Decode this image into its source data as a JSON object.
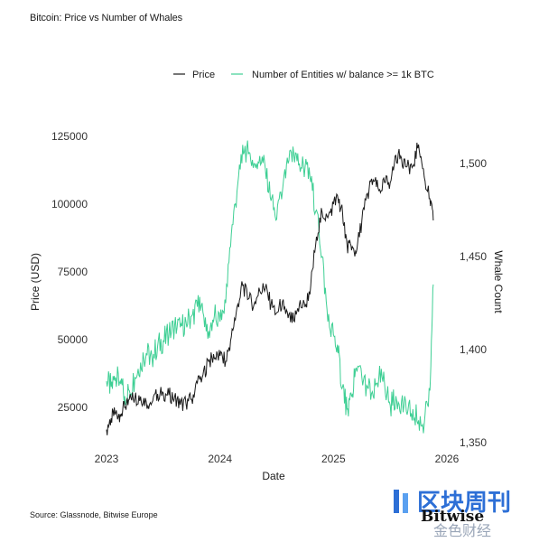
{
  "page": {
    "title": "Bitcoin: Price vs Number of Whales",
    "source": "Source: Glassnode, Bitwise Europe"
  },
  "watermark": {
    "brand_cn": "区块周刊",
    "brand_en": "Bitwise",
    "sub_cn": "金色财经"
  },
  "chart_data": {
    "type": "line",
    "title": "Bitcoin: Price vs Number of Whales",
    "xlabel": "Date",
    "ylabel": "Price (USD)",
    "y2label": "Whale Count",
    "x_ticks": [
      "2023",
      "2024",
      "2025",
      "2026"
    ],
    "y_ticks": [
      25000,
      50000,
      75000,
      100000,
      125000
    ],
    "y2_ticks": [
      "1,350",
      "1,400",
      "1,450",
      "1,500"
    ],
    "y2_tick_values": [
      1350,
      1400,
      1450,
      1500
    ],
    "ylim": [
      12000,
      126000
    ],
    "y2lim": [
      1350,
      1516
    ],
    "xlim": [
      2022.96,
      2026.0
    ],
    "legend_position": "top",
    "grid": false,
    "colors": {
      "price": "#1a1a1a",
      "whales": "#3ecf94"
    },
    "series": [
      {
        "name": "Price",
        "axis": "left",
        "x": [
          2023.0,
          2023.04,
          2023.08,
          2023.12,
          2023.16,
          2023.2,
          2023.25,
          2023.3,
          2023.35,
          2023.4,
          2023.45,
          2023.5,
          2023.55,
          2023.6,
          2023.65,
          2023.7,
          2023.75,
          2023.8,
          2023.85,
          2023.9,
          2023.95,
          2024.0,
          2024.05,
          2024.1,
          2024.15,
          2024.2,
          2024.25,
          2024.3,
          2024.35,
          2024.4,
          2024.45,
          2024.5,
          2024.55,
          2024.6,
          2024.65,
          2024.7,
          2024.75,
          2024.8,
          2024.85,
          2024.9,
          2024.95,
          2025.0,
          2025.04,
          2025.08,
          2025.12,
          2025.16,
          2025.2,
          2025.25,
          2025.3,
          2025.35,
          2025.4,
          2025.45,
          2025.5,
          2025.55,
          2025.6,
          2025.65,
          2025.7,
          2025.75,
          2025.8,
          2025.85,
          2025.88
        ],
        "values": [
          16800,
          21000,
          23000,
          22500,
          25000,
          28000,
          28500,
          29000,
          27000,
          26800,
          30000,
          30300,
          29500,
          29000,
          26000,
          26500,
          28000,
          34000,
          37000,
          42000,
          43000,
          44000,
          42000,
          51000,
          62000,
          70000,
          65000,
          63000,
          68000,
          69000,
          63000,
          60000,
          64000,
          58000,
          57000,
          63000,
          62000,
          70000,
          88000,
          97000,
          95000,
          100000,
          102000,
          97000,
          85000,
          83000,
          82000,
          94000,
          104000,
          109000,
          105000,
          108000,
          108000,
          118000,
          117000,
          114000,
          114000,
          122000,
          110000,
          102000,
          94000
        ]
      },
      {
        "name": "Number of Entities w/ balance >= 1k BTC",
        "axis": "right",
        "x": [
          2023.0,
          2023.04,
          2023.08,
          2023.12,
          2023.16,
          2023.2,
          2023.25,
          2023.3,
          2023.35,
          2023.4,
          2023.45,
          2023.5,
          2023.55,
          2023.6,
          2023.65,
          2023.7,
          2023.75,
          2023.8,
          2023.85,
          2023.9,
          2023.95,
          2024.0,
          2024.05,
          2024.1,
          2024.15,
          2024.2,
          2024.25,
          2024.3,
          2024.35,
          2024.4,
          2024.45,
          2024.5,
          2024.55,
          2024.6,
          2024.65,
          2024.7,
          2024.75,
          2024.8,
          2024.85,
          2024.9,
          2024.95,
          2025.0,
          2025.04,
          2025.08,
          2025.12,
          2025.16,
          2025.2,
          2025.25,
          2025.3,
          2025.35,
          2025.4,
          2025.45,
          2025.5,
          2025.55,
          2025.6,
          2025.65,
          2025.7,
          2025.75,
          2025.8,
          2025.85,
          2025.88
        ],
        "values": [
          1383,
          1380,
          1385,
          1383,
          1375,
          1378,
          1385,
          1393,
          1398,
          1396,
          1402,
          1405,
          1408,
          1413,
          1412,
          1415,
          1418,
          1423,
          1420,
          1410,
          1418,
          1415,
          1425,
          1462,
          1485,
          1510,
          1505,
          1500,
          1504,
          1497,
          1480,
          1470,
          1485,
          1500,
          1505,
          1500,
          1498,
          1490,
          1475,
          1450,
          1415,
          1408,
          1398,
          1380,
          1368,
          1375,
          1390,
          1385,
          1380,
          1375,
          1385,
          1382,
          1370,
          1375,
          1372,
          1365,
          1368,
          1362,
          1360,
          1378,
          1435
        ]
      }
    ]
  }
}
